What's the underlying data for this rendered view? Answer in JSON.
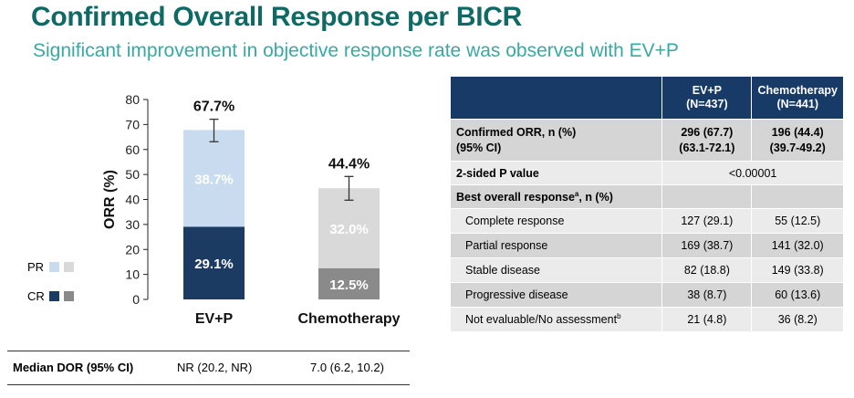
{
  "header": {
    "title": "Confirmed Overall Response per BICR",
    "subtitle": "Significant improvement in objective response rate was observed with EV+P"
  },
  "colors": {
    "title": "#0f6a66",
    "subtitle": "#3aa8a3",
    "evp_cr": "#1b3b63",
    "evp_pr": "#c9dcef",
    "chemo_cr": "#8a8a8a",
    "chemo_pr": "#d9d9d9",
    "table_header": "#173a66"
  },
  "chart_data": {
    "type": "bar",
    "stacked": true,
    "ylabel": "ORR (%)",
    "xlabel": "",
    "ylim": [
      0,
      80
    ],
    "yticks": [
      0,
      10,
      20,
      30,
      40,
      50,
      60,
      70,
      80
    ],
    "categories": [
      "EV+P",
      "Chemotherapy"
    ],
    "series": [
      {
        "name": "CR",
        "values": [
          29.1,
          12.5
        ],
        "labels": [
          "29.1%",
          "12.5%"
        ]
      },
      {
        "name": "PR",
        "values": [
          38.7,
          32.0
        ],
        "labels": [
          "38.7%",
          "32.0%"
        ]
      }
    ],
    "totals": [
      67.7,
      44.4
    ],
    "total_labels": [
      "67.7%",
      "44.4%"
    ],
    "error_bars": [
      [
        63.1,
        72.1
      ],
      [
        39.7,
        49.2
      ]
    ],
    "legend": [
      {
        "label": "PR",
        "colors": [
          "#c9dcef",
          "#d9d9d9"
        ]
      },
      {
        "label": "CR",
        "colors": [
          "#1b3b63",
          "#8a8a8a"
        ]
      }
    ],
    "legend_placement": "bottom-left"
  },
  "dor": {
    "label": "Median DOR (95% CI)",
    "values": [
      "NR (20.2, NR)",
      "7.0 (6.2, 10.2)"
    ]
  },
  "table": {
    "header": [
      "",
      "EV+P\n(N=437)",
      "Chemotherapy\n(N=441)"
    ],
    "confirmed_orr": {
      "label": "Confirmed ORR, n (%)\n(95% CI)",
      "evp": "296 (67.7)\n(63.1-72.1)",
      "chemo": "196 (44.4)\n(39.7-49.2)"
    },
    "p_value": {
      "label": "2-sided P value",
      "value": "<0.00001"
    },
    "best_response": {
      "label": "Best overall response",
      "sup": "a",
      "suffix": ", n (%)"
    },
    "rows": [
      {
        "label": "Complete response",
        "sup": "",
        "evp": "127 (29.1)",
        "chemo": "55 (12.5)"
      },
      {
        "label": "Partial response",
        "sup": "",
        "evp": "169 (38.7)",
        "chemo": "141 (32.0)"
      },
      {
        "label": "Stable disease",
        "sup": "",
        "evp": "82 (18.8)",
        "chemo": "149 (33.8)"
      },
      {
        "label": "Progressive disease",
        "sup": "",
        "evp": "38 (8.7)",
        "chemo": "60 (13.6)"
      },
      {
        "label": "Not evaluable/No assessment",
        "sup": "b",
        "evp": "21 (4.8)",
        "chemo": "36 (8.2)"
      }
    ]
  }
}
